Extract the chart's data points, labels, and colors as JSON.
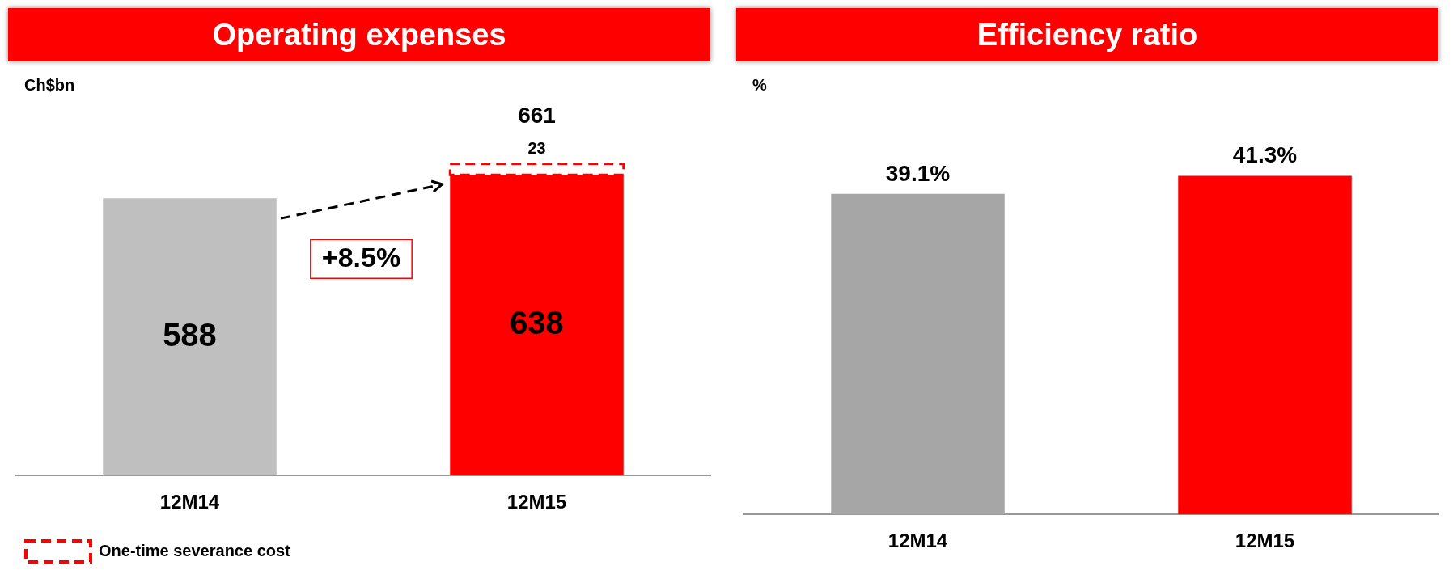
{
  "chart_data": [
    {
      "type": "bar",
      "title": "Operating expenses",
      "ylabel": "Ch$bn",
      "categories": [
        "12M14",
        "12M15"
      ],
      "stacked": true,
      "data_labels": true,
      "grid": false,
      "tick_labels": "x",
      "legend": "bottom",
      "totals": [
        null,
        "661"
      ],
      "annotations": [
        "+8.5%"
      ],
      "series": [
        {
          "colors": [
            "#bfbfbf",
            "#ff0000"
          ],
          "values": [
            588,
            638
          ]
        },
        {
          "name": "One-time severance cost",
          "color": "#ff0000",
          "line_style": "dashed",
          "values": [
            null,
            23
          ]
        }
      ]
    },
    {
      "type": "bar",
      "title": "Efficiency ratio",
      "ylabel": "%",
      "categories": [
        "12M14",
        "12M15"
      ],
      "grid": false,
      "tick_labels": "x",
      "legend": false,
      "series": [
        {
          "colors": [
            "#a6a6a6",
            "#ff0000"
          ],
          "values": [
            39.1,
            41.3
          ],
          "value_labels": [
            "39.1%",
            "41.3%"
          ]
        }
      ]
    }
  ]
}
